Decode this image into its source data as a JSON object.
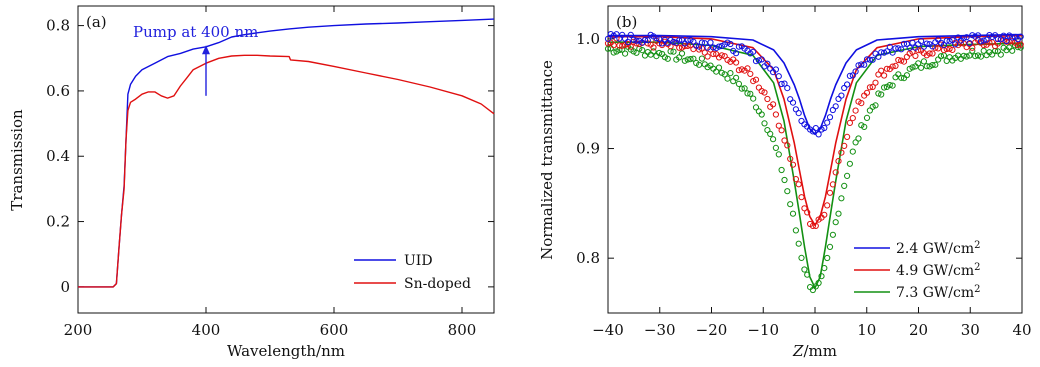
{
  "chart_data": [
    {
      "type": "line",
      "panel_label": "(a)",
      "xlabel": "Wavelength/nm",
      "ylabel": "Transmission",
      "xlim": [
        200,
        850
      ],
      "ylim": [
        -0.08,
        0.86
      ],
      "xticks": [
        200,
        400,
        600,
        800
      ],
      "yticks": [
        0,
        0.2,
        0.4,
        0.6,
        0.8
      ],
      "ytick_labels": [
        "0",
        "0.2",
        "0.4",
        "0.6",
        "0.8"
      ],
      "legend_position": "bottom-right",
      "annotation": {
        "text": "Pump at 400 nm",
        "x": 400,
        "y_from": 0.585,
        "y_to": 0.74,
        "color": "#2222dd"
      },
      "series": [
        {
          "name": "UID",
          "color": "#1010e0",
          "x": [
            200,
            230,
            255,
            260,
            264,
            268,
            272,
            275,
            278,
            282,
            290,
            300,
            320,
            340,
            360,
            380,
            400,
            420,
            440,
            460,
            480,
            500,
            530,
            560,
            600,
            650,
            700,
            750,
            800,
            850
          ],
          "y": [
            0,
            0,
            0,
            0.01,
            0.12,
            0.22,
            0.31,
            0.45,
            0.59,
            0.62,
            0.645,
            0.665,
            0.685,
            0.705,
            0.715,
            0.728,
            0.735,
            0.748,
            0.765,
            0.772,
            0.778,
            0.783,
            0.79,
            0.795,
            0.8,
            0.805,
            0.808,
            0.812,
            0.816,
            0.82
          ]
        },
        {
          "name": "Sn-doped",
          "color": "#e01010",
          "x": [
            200,
            230,
            255,
            260,
            264,
            268,
            272,
            275,
            278,
            282,
            290,
            300,
            310,
            320,
            330,
            340,
            350,
            355,
            360,
            370,
            380,
            400,
            420,
            440,
            460,
            480,
            500,
            530,
            532,
            560,
            600,
            650,
            700,
            750,
            800,
            830,
            850
          ],
          "y": [
            0,
            0,
            0,
            0.01,
            0.12,
            0.22,
            0.3,
            0.45,
            0.54,
            0.565,
            0.575,
            0.59,
            0.597,
            0.597,
            0.585,
            0.578,
            0.585,
            0.6,
            0.615,
            0.64,
            0.665,
            0.685,
            0.7,
            0.707,
            0.709,
            0.709,
            0.707,
            0.705,
            0.695,
            0.69,
            0.675,
            0.655,
            0.635,
            0.612,
            0.585,
            0.56,
            0.53
          ]
        }
      ]
    },
    {
      "type": "scatter",
      "panel_label": "(b)",
      "xlabel_italic": "Z",
      "xlabel_rest": "/mm",
      "ylabel": "Normalized transmittance",
      "xlim": [
        -40,
        40
      ],
      "ylim": [
        0.75,
        1.03
      ],
      "xticks": [
        -40,
        -30,
        -20,
        -10,
        0,
        10,
        20,
        30,
        40
      ],
      "xtick_labels": [
        "−40",
        "−30",
        "−20",
        "−10",
        "0",
        "10",
        "20",
        "30",
        "40"
      ],
      "yticks": [
        0.8,
        0.9,
        1.0
      ],
      "ytick_labels": [
        "0.8",
        "0.9",
        "1.0"
      ],
      "legend_position": "bottom-right",
      "series": [
        {
          "name": "2.4 GW/cm",
          "name_sup": "2",
          "color": "#1010e0",
          "dip_depth": 0.088,
          "dip_width": 4.5,
          "baseline": 1.003,
          "z": [
            -40,
            -30,
            -20,
            -12,
            -8,
            -6,
            -4,
            -3,
            -2,
            -1,
            0,
            1,
            2,
            3,
            4,
            6,
            8,
            12,
            20,
            30,
            40
          ],
          "t": [
            1.003,
            1.003,
            1.002,
            0.999,
            0.99,
            0.978,
            0.958,
            0.945,
            0.93,
            0.918,
            0.913,
            0.918,
            0.93,
            0.945,
            0.958,
            0.978,
            0.99,
            0.999,
            1.002,
            1.003,
            1.004
          ]
        },
        {
          "name": "4.9 GW/cm",
          "name_sup": "2",
          "color": "#e01010",
          "dip_depth": 0.172,
          "dip_width": 4.7,
          "baseline": 1.002,
          "z": [
            -40,
            -30,
            -20,
            -12,
            -8,
            -6,
            -4,
            -3,
            -2,
            -1,
            0,
            1,
            2,
            3,
            4,
            6,
            8,
            12,
            20,
            30,
            40
          ],
          "t": [
            1.002,
            1.002,
            1.0,
            0.992,
            0.972,
            0.945,
            0.905,
            0.88,
            0.856,
            0.838,
            0.83,
            0.838,
            0.856,
            0.88,
            0.905,
            0.945,
            0.972,
            0.992,
            1.0,
            1.002,
            1.003
          ]
        },
        {
          "name": "7.3 GW/cm",
          "name_sup": "2",
          "color": "#139013",
          "dip_depth": 0.225,
          "dip_width": 4.9,
          "baseline": 0.997,
          "z": [
            -40,
            -30,
            -20,
            -12,
            -8,
            -6,
            -4,
            -3,
            -2,
            -1,
            0,
            1,
            2,
            3,
            4,
            6,
            8,
            12,
            20,
            30,
            40
          ],
          "t": [
            0.997,
            0.997,
            0.994,
            0.985,
            0.96,
            0.925,
            0.87,
            0.84,
            0.81,
            0.783,
            0.773,
            0.783,
            0.81,
            0.84,
            0.87,
            0.925,
            0.96,
            0.985,
            0.993,
            0.995,
            0.996
          ]
        }
      ]
    }
  ]
}
